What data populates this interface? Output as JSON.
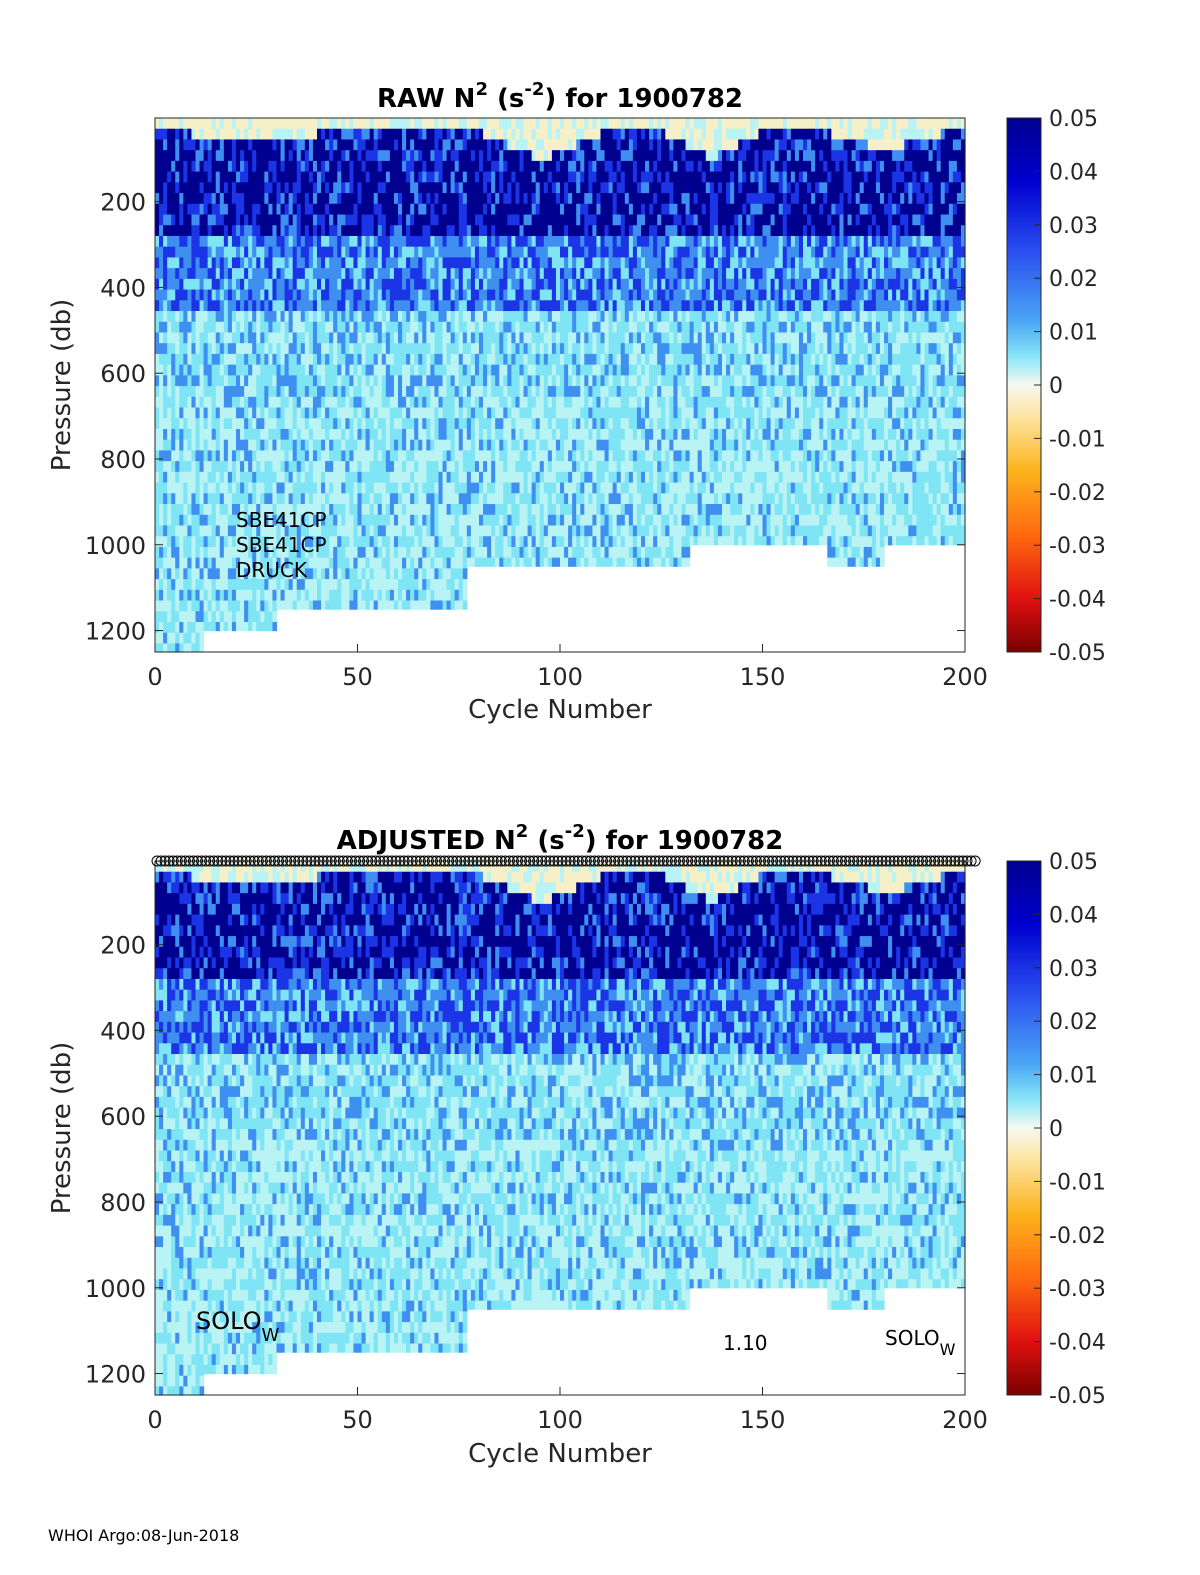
{
  "chart_data": [
    {
      "type": "heatmap",
      "title_prefix": "RAW N",
      "title_sup": "2",
      "title_unit_open": " (s",
      "title_unit_sup": "-2",
      "title_suffix": ") for 1900782",
      "xlabel": "Cycle Number",
      "ylabel": "Pressure (db)",
      "xlim": [
        0,
        200
      ],
      "ylim": [
        1250,
        5
      ],
      "xticks": [
        "0",
        "50",
        "100",
        "150",
        "200"
      ],
      "yticks": [
        "200",
        "400",
        "600",
        "800",
        "1000",
        "1200"
      ],
      "colorbar": {
        "range": [
          -0.05,
          0.05
        ],
        "ticks": [
          "0.05",
          "0.04",
          "0.03",
          "0.02",
          "0.01",
          "0",
          "-0.01",
          "-0.02",
          "-0.03",
          "-0.04",
          "-0.05"
        ]
      },
      "annotations": [
        "SBE41CP",
        "SBE41CP",
        "DRUCK"
      ],
      "cycle_markers": false
    },
    {
      "type": "heatmap",
      "title_prefix": "ADJUSTED N",
      "title_sup": "2",
      "title_unit_open": " (s",
      "title_unit_sup": "-2",
      "title_suffix": ") for 1900782",
      "xlabel": "Cycle Number",
      "ylabel": "Pressure (db)",
      "xlim": [
        0,
        200
      ],
      "ylim": [
        1250,
        5
      ],
      "xticks": [
        "0",
        "50",
        "100",
        "150",
        "200"
      ],
      "yticks": [
        "200",
        "400",
        "600",
        "800",
        "1000",
        "1200"
      ],
      "colorbar": {
        "range": [
          -0.05,
          0.05
        ],
        "ticks": [
          "0.05",
          "0.04",
          "0.03",
          "0.02",
          "0.01",
          "0",
          "-0.01",
          "-0.02",
          "-0.03",
          "-0.04",
          "-0.05"
        ]
      },
      "annotations": [
        {
          "base": "SOLO",
          "sub": "W"
        },
        {
          "text": "1.10"
        },
        {
          "base": "SOLO",
          "sub": "W"
        }
      ],
      "cycle_markers": true
    }
  ],
  "colors": {
    "dark_navy": "#00008f",
    "blue": "#1a34e6",
    "mid_blue": "#3f8ff0",
    "cyan": "#7fe4f4",
    "pale_cyan": "#b9f3f3",
    "near_zero": "#f5f0c8"
  },
  "footer": "WHOI Argo:08-Jun-2018"
}
